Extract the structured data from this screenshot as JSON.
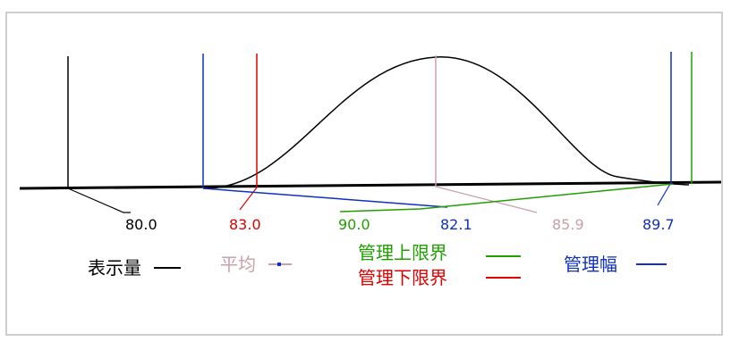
{
  "figure": {
    "value_labels": [
      {
        "id": "label-80",
        "text": "80.0",
        "color": "#000000"
      },
      {
        "id": "label-83",
        "text": "83.0",
        "color": "#e00000"
      },
      {
        "id": "label-90",
        "text": "90.0",
        "color": "#20a000"
      },
      {
        "id": "label-821",
        "text": "82.1",
        "color": "#1030c0"
      },
      {
        "id": "label-859",
        "text": "85.9",
        "color": "#c8a0a8"
      },
      {
        "id": "label-897",
        "text": "89.7",
        "color": "#1030c0"
      }
    ],
    "legend": {
      "display": {
        "label": "表示量",
        "color": "#000000"
      },
      "average": {
        "label": "平均",
        "color": "#c8a0a8"
      },
      "upper": {
        "label": "管理上限界",
        "color": "#20a000"
      },
      "lower": {
        "label": "管理下限界",
        "color": "#e00000"
      },
      "width": {
        "label": "管理幅",
        "color": "#1030c0"
      }
    }
  }
}
